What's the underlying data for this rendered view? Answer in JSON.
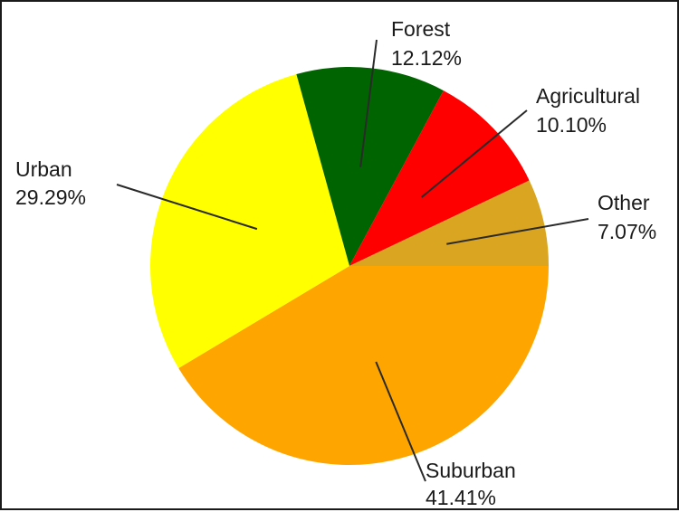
{
  "chart_data": {
    "type": "pie",
    "start_angle_deg": 0,
    "direction": "clockwise",
    "slices": [
      {
        "label": "Suburban",
        "value": 41.41,
        "value_text": "41.41%",
        "color": "#FFA500"
      },
      {
        "label": "Urban",
        "value": 29.29,
        "value_text": "29.29%",
        "color": "#FFFF00"
      },
      {
        "label": "Forest",
        "value": 12.12,
        "value_text": "12.12%",
        "color": "#006400"
      },
      {
        "label": "Agricultural",
        "value": 10.1,
        "value_text": "10.10%",
        "color": "#FF0000"
      },
      {
        "label": "Other",
        "value": 7.07,
        "value_text": "7.07%",
        "color": "#DAA520"
      }
    ]
  }
}
